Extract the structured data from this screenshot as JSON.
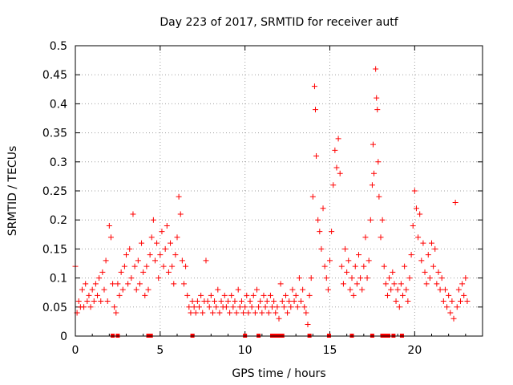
{
  "chart_data": {
    "type": "scatter",
    "title": "Day 223 of 2017, SRMTID for receiver autf",
    "xlabel": "GPS time / hours",
    "ylabel": "SRMTID / TECUs",
    "xlim": [
      0,
      24
    ],
    "ylim": [
      0,
      0.5
    ],
    "xticks": [
      "0",
      "5",
      "10",
      "15",
      "20"
    ],
    "yticks": [
      "0",
      "0.05",
      "0.1",
      "0.15",
      "0.2",
      "0.25",
      "0.3",
      "0.35",
      "0.4",
      "0.45",
      "0.5"
    ],
    "grid": true,
    "marker": "+",
    "color": "#ff0000",
    "series": [
      {
        "name": "SRMTID",
        "points": [
          [
            0.0,
            0.12
          ],
          [
            0.1,
            0.04
          ],
          [
            0.2,
            0.06
          ],
          [
            0.3,
            0.05
          ],
          [
            0.4,
            0.08
          ],
          [
            0.5,
            0.05
          ],
          [
            0.6,
            0.09
          ],
          [
            0.7,
            0.06
          ],
          [
            0.8,
            0.07
          ],
          [
            0.9,
            0.05
          ],
          [
            1.0,
            0.08
          ],
          [
            1.1,
            0.06
          ],
          [
            1.2,
            0.09
          ],
          [
            1.3,
            0.07
          ],
          [
            1.4,
            0.1
          ],
          [
            1.5,
            0.06
          ],
          [
            1.6,
            0.11
          ],
          [
            1.7,
            0.08
          ],
          [
            1.8,
            0.13
          ],
          [
            1.9,
            0.06
          ],
          [
            2.0,
            0.19
          ],
          [
            2.1,
            0.17
          ],
          [
            2.2,
            0.09
          ],
          [
            2.3,
            0.05
          ],
          [
            2.4,
            0.04
          ],
          [
            2.5,
            0.09
          ],
          [
            2.6,
            0.07
          ],
          [
            2.7,
            0.11
          ],
          [
            2.8,
            0.08
          ],
          [
            2.9,
            0.12
          ],
          [
            3.0,
            0.14
          ],
          [
            3.1,
            0.09
          ],
          [
            3.2,
            0.15
          ],
          [
            3.3,
            0.1
          ],
          [
            3.4,
            0.21
          ],
          [
            3.5,
            0.12
          ],
          [
            3.6,
            0.08
          ],
          [
            3.7,
            0.13
          ],
          [
            3.8,
            0.09
          ],
          [
            3.9,
            0.16
          ],
          [
            4.0,
            0.11
          ],
          [
            4.1,
            0.07
          ],
          [
            4.2,
            0.12
          ],
          [
            4.3,
            0.08
          ],
          [
            4.4,
            0.14
          ],
          [
            4.5,
            0.17
          ],
          [
            4.6,
            0.2
          ],
          [
            4.7,
            0.13
          ],
          [
            4.8,
            0.16
          ],
          [
            4.9,
            0.1
          ],
          [
            5.0,
            0.14
          ],
          [
            5.1,
            0.18
          ],
          [
            5.2,
            0.12
          ],
          [
            5.3,
            0.15
          ],
          [
            5.4,
            0.19
          ],
          [
            5.5,
            0.11
          ],
          [
            5.6,
            0.16
          ],
          [
            5.7,
            0.12
          ],
          [
            5.8,
            0.09
          ],
          [
            5.9,
            0.14
          ],
          [
            6.0,
            0.17
          ],
          [
            6.1,
            0.24
          ],
          [
            6.2,
            0.21
          ],
          [
            6.3,
            0.13
          ],
          [
            6.4,
            0.09
          ],
          [
            6.5,
            0.12
          ],
          [
            6.6,
            0.07
          ],
          [
            6.7,
            0.05
          ],
          [
            6.8,
            0.04
          ],
          [
            6.9,
            0.06
          ],
          [
            7.0,
            0.05
          ],
          [
            7.1,
            0.04
          ],
          [
            7.2,
            0.06
          ],
          [
            7.3,
            0.05
          ],
          [
            7.4,
            0.07
          ],
          [
            7.5,
            0.04
          ],
          [
            7.6,
            0.06
          ],
          [
            7.7,
            0.13
          ],
          [
            7.8,
            0.06
          ],
          [
            7.9,
            0.05
          ],
          [
            8.0,
            0.07
          ],
          [
            8.1,
            0.04
          ],
          [
            8.2,
            0.06
          ],
          [
            8.3,
            0.05
          ],
          [
            8.4,
            0.08
          ],
          [
            8.5,
            0.04
          ],
          [
            8.6,
            0.06
          ],
          [
            8.7,
            0.05
          ],
          [
            8.8,
            0.07
          ],
          [
            8.9,
            0.05
          ],
          [
            9.0,
            0.06
          ],
          [
            9.1,
            0.04
          ],
          [
            9.2,
            0.07
          ],
          [
            9.3,
            0.05
          ],
          [
            9.4,
            0.06
          ],
          [
            9.5,
            0.04
          ],
          [
            9.6,
            0.08
          ],
          [
            9.7,
            0.05
          ],
          [
            9.8,
            0.06
          ],
          [
            9.9,
            0.04
          ],
          [
            10.0,
            0.05
          ],
          [
            10.1,
            0.07
          ],
          [
            10.2,
            0.04
          ],
          [
            10.3,
            0.06
          ],
          [
            10.4,
            0.05
          ],
          [
            10.5,
            0.07
          ],
          [
            10.6,
            0.04
          ],
          [
            10.7,
            0.08
          ],
          [
            10.8,
            0.05
          ],
          [
            10.9,
            0.06
          ],
          [
            11.0,
            0.04
          ],
          [
            11.1,
            0.07
          ],
          [
            11.2,
            0.05
          ],
          [
            11.3,
            0.06
          ],
          [
            11.4,
            0.04
          ],
          [
            11.5,
            0.07
          ],
          [
            11.6,
            0.05
          ],
          [
            11.7,
            0.06
          ],
          [
            11.8,
            0.04
          ],
          [
            11.9,
            0.05
          ],
          [
            12.0,
            0.03
          ],
          [
            12.1,
            0.09
          ],
          [
            12.2,
            0.06
          ],
          [
            12.3,
            0.05
          ],
          [
            12.4,
            0.07
          ],
          [
            12.5,
            0.04
          ],
          [
            12.6,
            0.06
          ],
          [
            12.7,
            0.05
          ],
          [
            12.8,
            0.08
          ],
          [
            12.9,
            0.06
          ],
          [
            13.0,
            0.07
          ],
          [
            13.1,
            0.05
          ],
          [
            13.2,
            0.1
          ],
          [
            13.3,
            0.06
          ],
          [
            13.4,
            0.08
          ],
          [
            13.5,
            0.05
          ],
          [
            13.6,
            0.04
          ],
          [
            13.7,
            0.02
          ],
          [
            13.8,
            0.07
          ],
          [
            13.9,
            0.1
          ],
          [
            14.0,
            0.24
          ],
          [
            14.1,
            0.43
          ],
          [
            14.15,
            0.39
          ],
          [
            14.2,
            0.31
          ],
          [
            14.3,
            0.2
          ],
          [
            14.4,
            0.18
          ],
          [
            14.5,
            0.15
          ],
          [
            14.6,
            0.22
          ],
          [
            14.7,
            0.12
          ],
          [
            14.8,
            0.1
          ],
          [
            14.9,
            0.08
          ],
          [
            15.0,
            0.13
          ],
          [
            15.1,
            0.18
          ],
          [
            15.2,
            0.26
          ],
          [
            15.3,
            0.32
          ],
          [
            15.4,
            0.29
          ],
          [
            15.5,
            0.34
          ],
          [
            15.6,
            0.28
          ],
          [
            15.7,
            0.12
          ],
          [
            15.8,
            0.09
          ],
          [
            15.9,
            0.15
          ],
          [
            16.0,
            0.11
          ],
          [
            16.1,
            0.13
          ],
          [
            16.2,
            0.08
          ],
          [
            16.3,
            0.1
          ],
          [
            16.4,
            0.07
          ],
          [
            16.5,
            0.12
          ],
          [
            16.6,
            0.09
          ],
          [
            16.7,
            0.14
          ],
          [
            16.8,
            0.1
          ],
          [
            16.9,
            0.08
          ],
          [
            17.0,
            0.12
          ],
          [
            17.1,
            0.17
          ],
          [
            17.2,
            0.1
          ],
          [
            17.3,
            0.13
          ],
          [
            17.4,
            0.2
          ],
          [
            17.5,
            0.26
          ],
          [
            17.55,
            0.33
          ],
          [
            17.6,
            0.28
          ],
          [
            17.7,
            0.46
          ],
          [
            17.75,
            0.41
          ],
          [
            17.8,
            0.39
          ],
          [
            17.85,
            0.3
          ],
          [
            17.9,
            0.24
          ],
          [
            18.0,
            0.17
          ],
          [
            18.1,
            0.2
          ],
          [
            18.2,
            0.12
          ],
          [
            18.3,
            0.09
          ],
          [
            18.4,
            0.07
          ],
          [
            18.5,
            0.1
          ],
          [
            18.6,
            0.08
          ],
          [
            18.7,
            0.11
          ],
          [
            18.8,
            0.09
          ],
          [
            18.9,
            0.06
          ],
          [
            19.0,
            0.08
          ],
          [
            19.1,
            0.05
          ],
          [
            19.2,
            0.09
          ],
          [
            19.3,
            0.07
          ],
          [
            19.4,
            0.12
          ],
          [
            19.5,
            0.08
          ],
          [
            19.6,
            0.06
          ],
          [
            19.7,
            0.1
          ],
          [
            19.8,
            0.14
          ],
          [
            19.9,
            0.19
          ],
          [
            20.0,
            0.25
          ],
          [
            20.1,
            0.22
          ],
          [
            20.2,
            0.17
          ],
          [
            20.3,
            0.21
          ],
          [
            20.4,
            0.13
          ],
          [
            20.5,
            0.16
          ],
          [
            20.6,
            0.11
          ],
          [
            20.7,
            0.09
          ],
          [
            20.8,
            0.14
          ],
          [
            20.9,
            0.1
          ],
          [
            21.0,
            0.16
          ],
          [
            21.1,
            0.12
          ],
          [
            21.2,
            0.15
          ],
          [
            21.3,
            0.09
          ],
          [
            21.4,
            0.11
          ],
          [
            21.5,
            0.08
          ],
          [
            21.6,
            0.1
          ],
          [
            21.7,
            0.06
          ],
          [
            21.8,
            0.08
          ],
          [
            21.9,
            0.05
          ],
          [
            22.0,
            0.07
          ],
          [
            22.1,
            0.04
          ],
          [
            22.2,
            0.06
          ],
          [
            22.3,
            0.03
          ],
          [
            22.4,
            0.23
          ],
          [
            22.5,
            0.05
          ],
          [
            22.6,
            0.08
          ],
          [
            22.7,
            0.06
          ],
          [
            22.8,
            0.09
          ],
          [
            22.9,
            0.07
          ],
          [
            23.0,
            0.1
          ],
          [
            23.1,
            0.06
          ]
        ]
      }
    ],
    "baseline_markers": {
      "name": "zero-value markers",
      "x": [
        2.2,
        2.5,
        4.3,
        4.45,
        6.9,
        10.0,
        10.8,
        11.6,
        11.75,
        11.9,
        12.05,
        12.2,
        13.8,
        14.95,
        16.3,
        17.5,
        18.1,
        18.3,
        18.45,
        18.75,
        19.25
      ]
    }
  }
}
